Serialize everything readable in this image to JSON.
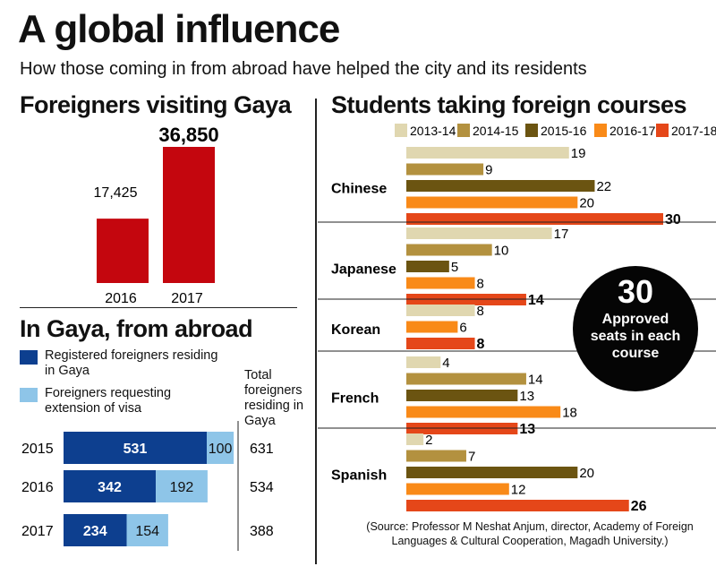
{
  "header": {
    "title": "A global influence",
    "subtitle": "How those coming in from abroad have helped the city and its residents"
  },
  "panel_visitors": {
    "heading": "Foreigners visiting Gaya",
    "bar_color": "#c4060e"
  },
  "panel_abroad": {
    "heading": "In Gaya, from abroad",
    "legend": [
      {
        "label": "Registered foreigners residing in Gaya",
        "color": "#0d3f8f"
      },
      {
        "label": "Foreigners requesting extension of visa",
        "color": "#8ec5e8"
      }
    ],
    "total_label": "Total foreigners residing in Gaya"
  },
  "panel_courses": {
    "heading": "Students taking foreign courses",
    "badge": {
      "number": "30",
      "text": "Approved seats in each course"
    },
    "source": "(Source: Professor M Neshat Anjum, director, Academy of Foreign Languages & Cultural Cooperation, Magadh University.)"
  },
  "chart_data": [
    {
      "type": "bar",
      "title": "Foreigners visiting Gaya",
      "categories": [
        "2016",
        "2017"
      ],
      "values": [
        17425,
        36850
      ],
      "value_labels": [
        "17,425",
        "36,850"
      ],
      "ylim": [
        0,
        36850
      ]
    },
    {
      "type": "bar",
      "stacked": true,
      "orientation": "horizontal",
      "title": "In Gaya, from abroad",
      "categories": [
        "2015",
        "2016",
        "2017"
      ],
      "series": [
        {
          "name": "Registered foreigners residing in Gaya",
          "values": [
            531,
            342,
            234
          ],
          "color": "#0d3f8f"
        },
        {
          "name": "Foreigners requesting extension of visa",
          "values": [
            100,
            192,
            154
          ],
          "color": "#8ec5e8"
        }
      ],
      "totals": [
        631,
        534,
        388
      ]
    },
    {
      "type": "bar",
      "orientation": "horizontal",
      "title": "Students taking foreign courses",
      "categories": [
        "Chinese",
        "Japanese",
        "Korean",
        "French",
        "Spanish"
      ],
      "series": [
        {
          "name": "2013-14",
          "values": [
            19,
            17,
            8,
            4,
            2
          ],
          "color": "#e0d7b0"
        },
        {
          "name": "2014-15",
          "values": [
            9,
            10,
            null,
            14,
            7
          ],
          "color": "#b3913f"
        },
        {
          "name": "2015-16",
          "values": [
            22,
            5,
            null,
            13,
            20
          ],
          "color": "#6b5411"
        },
        {
          "name": "2016-17",
          "values": [
            20,
            8,
            6,
            18,
            12
          ],
          "color": "#f98a18"
        },
        {
          "name": "2017-18",
          "values": [
            30,
            14,
            8,
            13,
            26
          ],
          "color": "#e54719"
        }
      ],
      "xlim": [
        0,
        30
      ]
    }
  ]
}
